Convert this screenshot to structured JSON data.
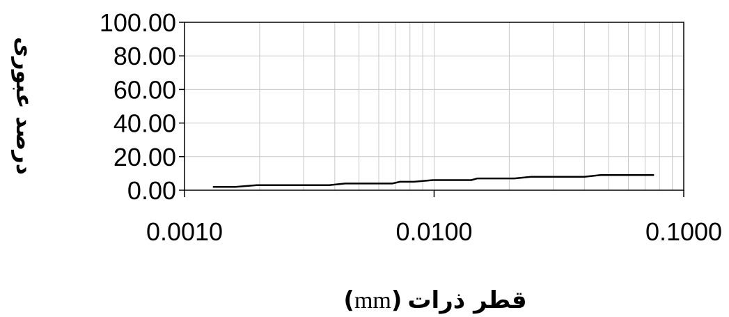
{
  "chart_data": {
    "type": "line",
    "title": "",
    "xlabel": "قطر ذرات",
    "xlabel_unit": "mm",
    "ylabel": "درصد عبوری",
    "x_scale": "log",
    "xlim": [
      0.001,
      0.1
    ],
    "ylim": [
      0,
      100
    ],
    "grid": true,
    "legend": "none",
    "x_ticks": [
      "0.0010",
      "0.0100",
      "0.1000"
    ],
    "y_ticks": [
      "0.00",
      "20.00",
      "40.00",
      "60.00",
      "80.00",
      "100.00"
    ],
    "line_color": "#000000",
    "grid_color": "#c8c8c8",
    "series": [
      {
        "x": [
          0.0013,
          0.0016,
          0.00195,
          0.0038,
          0.0044,
          0.0068,
          0.0073,
          0.0083,
          0.0099,
          0.0141,
          0.0149,
          0.021,
          0.0245,
          0.04,
          0.0465,
          0.076
        ],
        "y": [
          2.0,
          2.0,
          3.0,
          3.0,
          4.0,
          4.0,
          5.0,
          5.0,
          6.0,
          6.0,
          7.0,
          7.0,
          8.0,
          8.0,
          9.0,
          9.0
        ]
      }
    ]
  }
}
